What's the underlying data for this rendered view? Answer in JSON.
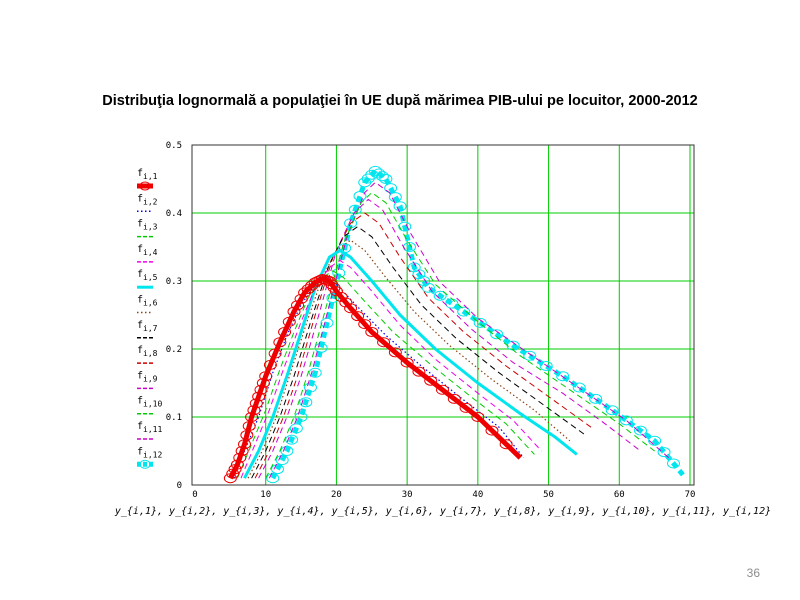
{
  "slide": {
    "title": "Distribuţia lognormală a populaţiei în UE după mărimea PIB-ului pe locuitor, 2000-2012",
    "page_number": "36"
  },
  "chart_data": {
    "type": "line",
    "title": "Distribuţia lognormală a populaţiei în UE după mărimea PIB-ului pe locuitor, 2000-2012",
    "xlabel": "y_{i,1}, y_{i,2}, y_{i,3}, y_{i,4}, y_{i,5}, y_{i,6}, y_{i,7}, y_{i,8}, y_{i,9}, y_{i,10}, y_{i,11}, y_{i,12}",
    "ylabel": "",
    "xlim": [
      0,
      70
    ],
    "ylim": [
      0,
      0.5
    ],
    "xticks": [
      0,
      10,
      20,
      30,
      40,
      50,
      60,
      70
    ],
    "yticks": [
      0,
      0.1,
      0.2,
      0.3,
      0.4,
      0.5
    ],
    "grid": true,
    "grid_color": "#00cc00",
    "legend_position": "left",
    "series": [
      {
        "name": "f_{i,1}",
        "color": "#ee0000",
        "style": "thick-solid",
        "markers": "circle",
        "points": [
          [
            5,
            0.01
          ],
          [
            6,
            0.03
          ],
          [
            7,
            0.06
          ],
          [
            8,
            0.1
          ],
          [
            9,
            0.13
          ],
          [
            10,
            0.16
          ],
          [
            12,
            0.21
          ],
          [
            14,
            0.255
          ],
          [
            15.5,
            0.283
          ],
          [
            17,
            0.298
          ],
          [
            18,
            0.303
          ],
          [
            19,
            0.3
          ],
          [
            20,
            0.285
          ],
          [
            22,
            0.26
          ],
          [
            25,
            0.225
          ],
          [
            30,
            0.18
          ],
          [
            35,
            0.14
          ],
          [
            40,
            0.1
          ],
          [
            46,
            0.04
          ]
        ]
      },
      {
        "name": "f_{i,2}",
        "color": "#0000ee",
        "style": "dotted",
        "points": [
          [
            5.5,
            0.01
          ],
          [
            7,
            0.05
          ],
          [
            9,
            0.1
          ],
          [
            11,
            0.165
          ],
          [
            13,
            0.22
          ],
          [
            15,
            0.265
          ],
          [
            17,
            0.295
          ],
          [
            18.5,
            0.305
          ],
          [
            20,
            0.295
          ],
          [
            23,
            0.262
          ],
          [
            27,
            0.22
          ],
          [
            32,
            0.175
          ],
          [
            38,
            0.125
          ],
          [
            43,
            0.085
          ],
          [
            46.5,
            0.04
          ]
        ]
      },
      {
        "name": "f_{i,3}",
        "color": "#00cc00",
        "style": "dashed",
        "points": [
          [
            6,
            0.01
          ],
          [
            8,
            0.06
          ],
          [
            10,
            0.11
          ],
          [
            12,
            0.17
          ],
          [
            14,
            0.225
          ],
          [
            16,
            0.275
          ],
          [
            18,
            0.305
          ],
          [
            19.5,
            0.315
          ],
          [
            21,
            0.305
          ],
          [
            24,
            0.27
          ],
          [
            28,
            0.225
          ],
          [
            33,
            0.18
          ],
          [
            39,
            0.13
          ],
          [
            44,
            0.09
          ],
          [
            48,
            0.045
          ]
        ]
      },
      {
        "name": "f_{i,4}",
        "color": "#ee00ee",
        "style": "dashed",
        "points": [
          [
            6.5,
            0.01
          ],
          [
            8.5,
            0.06
          ],
          [
            10.5,
            0.11
          ],
          [
            12.5,
            0.17
          ],
          [
            15,
            0.24
          ],
          [
            17,
            0.29
          ],
          [
            19,
            0.32
          ],
          [
            20.5,
            0.33
          ],
          [
            22,
            0.32
          ],
          [
            25,
            0.285
          ],
          [
            29,
            0.235
          ],
          [
            34,
            0.185
          ],
          [
            40,
            0.135
          ],
          [
            45,
            0.095
          ],
          [
            49,
            0.05
          ]
        ]
      },
      {
        "name": "f_{i,5}",
        "color": "#00e5ee",
        "style": "solid",
        "points": [
          [
            7,
            0.01
          ],
          [
            9,
            0.05
          ],
          [
            11,
            0.1
          ],
          [
            13,
            0.16
          ],
          [
            15,
            0.225
          ],
          [
            17,
            0.29
          ],
          [
            19,
            0.335
          ],
          [
            20.5,
            0.345
          ],
          [
            22,
            0.335
          ],
          [
            25,
            0.3
          ],
          [
            29,
            0.25
          ],
          [
            34,
            0.2
          ],
          [
            40,
            0.15
          ],
          [
            46,
            0.105
          ],
          [
            51,
            0.07
          ],
          [
            54,
            0.045
          ]
        ]
      },
      {
        "name": "f_{i,6}",
        "color": "#8b4513",
        "style": "dotted",
        "points": [
          [
            7.5,
            0.01
          ],
          [
            9.5,
            0.05
          ],
          [
            11.5,
            0.1
          ],
          [
            13.5,
            0.165
          ],
          [
            16,
            0.245
          ],
          [
            18,
            0.305
          ],
          [
            20,
            0.345
          ],
          [
            22,
            0.36
          ],
          [
            24,
            0.345
          ],
          [
            27,
            0.305
          ],
          [
            31,
            0.255
          ],
          [
            36,
            0.205
          ],
          [
            42,
            0.155
          ],
          [
            48,
            0.11
          ],
          [
            53,
            0.065
          ]
        ]
      },
      {
        "name": "f_{i,7}",
        "color": "#000000",
        "style": "dashed",
        "points": [
          [
            8,
            0.01
          ],
          [
            10,
            0.05
          ],
          [
            12,
            0.1
          ],
          [
            14,
            0.16
          ],
          [
            16.5,
            0.245
          ],
          [
            19,
            0.325
          ],
          [
            21,
            0.365
          ],
          [
            23,
            0.38
          ],
          [
            25,
            0.365
          ],
          [
            28,
            0.32
          ],
          [
            32,
            0.265
          ],
          [
            37,
            0.215
          ],
          [
            43,
            0.165
          ],
          [
            49,
            0.12
          ],
          [
            55,
            0.075
          ]
        ]
      },
      {
        "name": "f_{i,8}",
        "color": "#cc0000",
        "style": "dashed",
        "points": [
          [
            8.5,
            0.01
          ],
          [
            10.5,
            0.05
          ],
          [
            12.5,
            0.1
          ],
          [
            14.5,
            0.16
          ],
          [
            17,
            0.25
          ],
          [
            19.5,
            0.335
          ],
          [
            22,
            0.385
          ],
          [
            24,
            0.4
          ],
          [
            26,
            0.385
          ],
          [
            29,
            0.335
          ],
          [
            33,
            0.275
          ],
          [
            38,
            0.225
          ],
          [
            44,
            0.175
          ],
          [
            50,
            0.13
          ],
          [
            56,
            0.085
          ]
        ]
      },
      {
        "name": "f_{i,9}",
        "color": "#cc00cc",
        "style": "dashed",
        "points": [
          [
            9,
            0.01
          ],
          [
            11,
            0.05
          ],
          [
            13,
            0.1
          ],
          [
            15,
            0.16
          ],
          [
            17.5,
            0.25
          ],
          [
            20,
            0.345
          ],
          [
            22.5,
            0.4
          ],
          [
            24.5,
            0.42
          ],
          [
            26.5,
            0.405
          ],
          [
            29.5,
            0.35
          ],
          [
            33.5,
            0.285
          ],
          [
            39,
            0.23
          ],
          [
            45,
            0.18
          ],
          [
            52,
            0.135
          ],
          [
            58,
            0.09
          ],
          [
            63,
            0.05
          ]
        ]
      },
      {
        "name": "f_{i,10}",
        "color": "#00cc00",
        "style": "dashed",
        "points": [
          [
            10,
            0.01
          ],
          [
            12,
            0.05
          ],
          [
            14,
            0.1
          ],
          [
            16,
            0.165
          ],
          [
            18.5,
            0.26
          ],
          [
            21,
            0.355
          ],
          [
            23.5,
            0.415
          ],
          [
            25,
            0.43
          ],
          [
            27,
            0.415
          ],
          [
            30,
            0.36
          ],
          [
            34,
            0.295
          ],
          [
            40,
            0.24
          ],
          [
            46,
            0.19
          ],
          [
            53,
            0.14
          ],
          [
            60,
            0.09
          ],
          [
            65,
            0.05
          ]
        ]
      },
      {
        "name": "f_{i,11}",
        "color": "#cc00cc",
        "style": "dashed",
        "points": [
          [
            10.5,
            0.01
          ],
          [
            12.5,
            0.05
          ],
          [
            14.5,
            0.1
          ],
          [
            16.5,
            0.165
          ],
          [
            19,
            0.265
          ],
          [
            21.5,
            0.365
          ],
          [
            24,
            0.43
          ],
          [
            25.5,
            0.445
          ],
          [
            27.5,
            0.43
          ],
          [
            30.5,
            0.37
          ],
          [
            34.5,
            0.3
          ],
          [
            40,
            0.245
          ],
          [
            47,
            0.195
          ],
          [
            54,
            0.145
          ],
          [
            61,
            0.095
          ],
          [
            67,
            0.04
          ]
        ]
      },
      {
        "name": "f_{i,12}",
        "color": "#00e5ee",
        "style": "thick-dotted",
        "markers": "circle",
        "points": [
          [
            11,
            0.01
          ],
          [
            13,
            0.05
          ],
          [
            15,
            0.1
          ],
          [
            17,
            0.165
          ],
          [
            19.5,
            0.275
          ],
          [
            22,
            0.385
          ],
          [
            24,
            0.445
          ],
          [
            25.5,
            0.462
          ],
          [
            27,
            0.45
          ],
          [
            29,
            0.41
          ],
          [
            31,
            0.32
          ],
          [
            33,
            0.29
          ],
          [
            38,
            0.255
          ],
          [
            45,
            0.205
          ],
          [
            52,
            0.16
          ],
          [
            59,
            0.11
          ],
          [
            65,
            0.065
          ],
          [
            69,
            0.015
          ]
        ]
      }
    ]
  }
}
